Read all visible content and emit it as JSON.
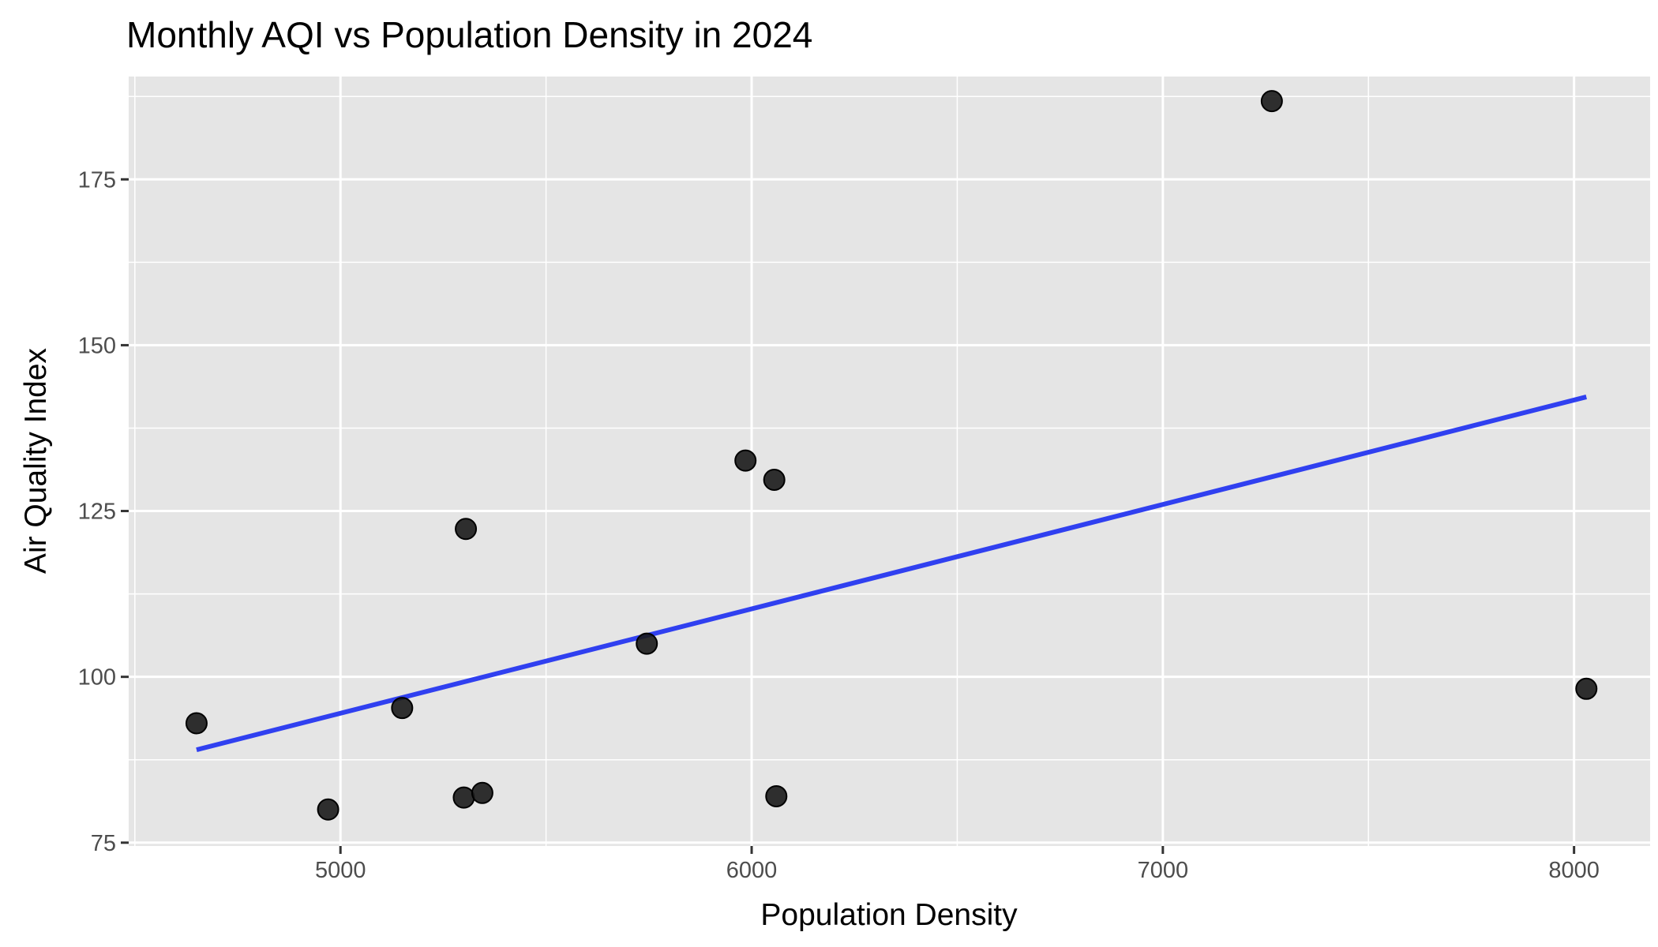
{
  "chart_data": {
    "type": "scatter",
    "title": "Monthly AQI vs Population Density in 2024",
    "xlabel": "Population Density",
    "ylabel": "Air Quality Index",
    "xlim": [
      4485,
      8185
    ],
    "ylim": [
      74.5,
      190.5
    ],
    "x_ticks": [
      5000,
      6000,
      7000,
      8000
    ],
    "y_ticks": [
      75,
      100,
      125,
      150,
      175
    ],
    "grid": true,
    "legend": "none",
    "points": [
      {
        "x": 4650,
        "y": 93
      },
      {
        "x": 4970,
        "y": 80
      },
      {
        "x": 5150,
        "y": 95.3
      },
      {
        "x": 5300,
        "y": 81.8
      },
      {
        "x": 5305,
        "y": 122.3
      },
      {
        "x": 5345,
        "y": 82.5
      },
      {
        "x": 5745,
        "y": 105
      },
      {
        "x": 5985,
        "y": 132.6
      },
      {
        "x": 6055,
        "y": 129.7
      },
      {
        "x": 6060,
        "y": 82
      },
      {
        "x": 7265,
        "y": 186.8
      },
      {
        "x": 8030,
        "y": 98.2
      }
    ],
    "trend_line": {
      "x": [
        4650,
        8030
      ],
      "y": [
        89,
        142.2
      ]
    },
    "colors": {
      "panel_background": "#e5e5e5",
      "grid": "#ffffff",
      "points": "#1a1a1a",
      "trend_line": "#3040f0"
    }
  }
}
